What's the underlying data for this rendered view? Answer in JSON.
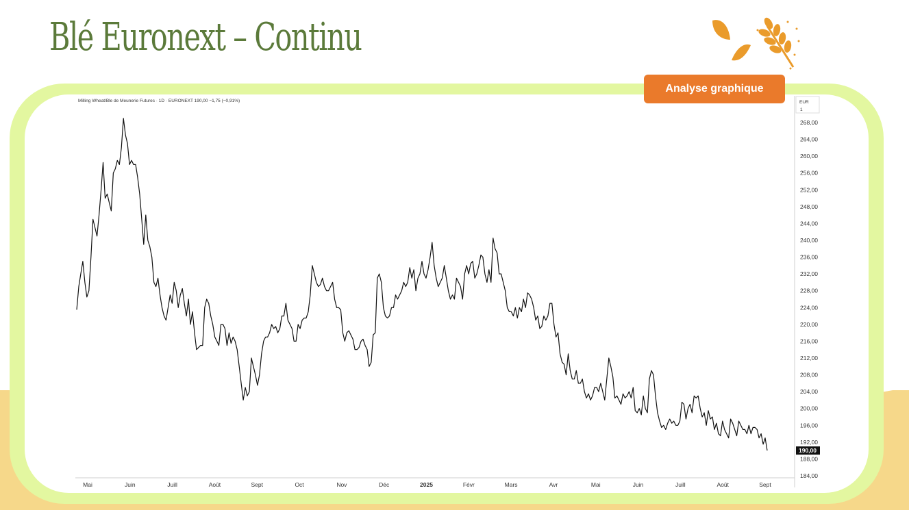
{
  "page": {
    "title": "Blé Euronext – Continu",
    "button_label": "Analyse graphique"
  },
  "colors": {
    "title": "#5b7a3a",
    "frame": "#e3f7a0",
    "accent": "#ea7a2b",
    "band": "#f6d88a",
    "line": "#111111"
  },
  "chart_data": {
    "type": "line",
    "header": "Milling Wheat/Ble de Meunerie Futures · 1D · EURONEXT  190,00  −1,75 (−0,91%)",
    "currency_label": "EUR",
    "currency_sub": "1",
    "y_ticks": [
      "268,00",
      "264,00",
      "260,00",
      "256,00",
      "252,00",
      "248,00",
      "244,00",
      "240,00",
      "236,00",
      "232,00",
      "228,00",
      "224,00",
      "220,00",
      "216,00",
      "212,00",
      "208,00",
      "204,00",
      "200,00",
      "196,00",
      "192,00",
      "188,00",
      "184,00"
    ],
    "y_tick_values": [
      268,
      264,
      260,
      256,
      252,
      248,
      244,
      240,
      236,
      232,
      228,
      224,
      220,
      216,
      212,
      208,
      204,
      200,
      196,
      192,
      188,
      184
    ],
    "ylim": [
      184,
      268
    ],
    "last_price_label": "190,00",
    "x_tick_labels": [
      "Mai",
      "Juin",
      "Juill",
      "Août",
      "Sept",
      "Oct",
      "Nov",
      "Déc",
      "2025",
      "Févr",
      "Mars",
      "Avr",
      "Mai",
      "Juin",
      "Juill",
      "Août",
      "Sept"
    ],
    "x_bold_label": "2025",
    "series": [
      {
        "values": [
          223.5,
          229.0,
          232.0,
          235.0,
          230.0,
          226.5,
          228.0,
          236.0,
          245.0,
          243.0,
          241.0,
          246.0,
          252.0,
          258.5,
          250.0,
          251.0,
          249.0,
          247.0,
          256.0,
          257.0,
          259.0,
          258.0,
          262.0,
          269.0,
          265.0,
          263.0,
          258.0,
          259.0,
          258.0,
          258.0,
          255.0,
          251.0,
          245.0,
          239.0,
          246.0,
          240.0,
          238.5,
          236.0,
          230.0,
          229.0,
          231.0,
          227.0,
          224.0,
          222.0,
          221.0,
          224.0,
          227.0,
          225.0,
          230.0,
          228.0,
          224.0,
          227.0,
          228.5,
          225.0,
          222.0,
          226.0,
          220.0,
          223.0,
          218.0,
          214.0,
          214.5,
          215.0,
          215.0,
          224.0,
          226.0,
          225.0,
          222.0,
          220.0,
          217.0,
          216.0,
          215.0,
          220.0,
          220.0,
          219.0,
          215.0,
          218.0,
          215.5,
          217.0,
          216.0,
          214.0,
          210.0,
          206.0,
          202.0,
          205.0,
          203.0,
          204.0,
          212.0,
          210.0,
          208.0,
          205.5,
          208.0,
          213.0,
          216.0,
          217.0,
          217.0,
          218.0,
          220.0,
          219.0,
          219.5,
          218.0,
          219.0,
          222.0,
          222.0,
          225.0,
          221.0,
          220.0,
          219.0,
          216.0,
          216.0,
          220.0,
          219.0,
          221.0,
          221.5,
          221.5,
          223.0,
          227.0,
          234.0,
          232.0,
          230.0,
          229.0,
          229.5,
          231.0,
          229.0,
          228.0,
          228.0,
          229.0,
          230.0,
          226.0,
          224.0,
          224.0,
          223.5,
          218.0,
          216.0,
          218.0,
          218.5,
          217.5,
          216.5,
          214.0,
          214.0,
          214.5,
          216.0,
          216.5,
          215.0,
          214.0,
          210.0,
          211.0,
          217.5,
          218.0,
          231.0,
          232.0,
          230.0,
          224.0,
          222.0,
          221.5,
          222.0,
          224.0,
          224.0,
          227.0,
          226.0,
          227.0,
          228.0,
          230.0,
          229.0,
          230.0,
          233.5,
          231.0,
          233.0,
          228.0,
          231.0,
          232.0,
          235.0,
          232.0,
          231.0,
          233.0,
          236.0,
          239.5,
          234.0,
          231.0,
          229.0,
          230.0,
          231.0,
          234.0,
          231.0,
          228.0,
          226.0,
          227.0,
          226.0,
          231.0,
          230.0,
          229.0,
          226.0,
          232.0,
          234.0,
          232.0,
          234.5,
          235.0,
          231.0,
          232.0,
          234.0,
          236.5,
          236.0,
          232.0,
          230.0,
          233.0,
          230.0,
          240.5,
          238.0,
          237.0,
          232.0,
          232.0,
          230.0,
          228.0,
          224.0,
          223.0,
          223.0,
          222.0,
          224.0,
          221.5,
          224.0,
          223.0,
          226.0,
          224.0,
          227.5,
          227.0,
          226.0,
          224.0,
          221.0,
          222.0,
          219.0,
          219.5,
          222.0,
          221.0,
          222.0,
          225.0,
          225.0,
          220.0,
          217.0,
          218.0,
          213.0,
          211.0,
          210.5,
          208.0,
          213.0,
          209.0,
          207.0,
          207.0,
          209.0,
          206.0,
          206.0,
          207.0,
          204.0,
          202.5,
          203.5,
          202.0,
          203.0,
          205.0,
          205.0,
          204.0,
          206.0,
          204.0,
          202.0,
          207.0,
          212.0,
          210.0,
          207.5,
          202.5,
          203.0,
          202.0,
          201.0,
          203.5,
          202.5,
          203.0,
          204.0,
          202.5,
          205.0,
          199.5,
          199.0,
          200.0,
          198.5,
          203.0,
          200.0,
          199.0,
          207.0,
          209.0,
          208.0,
          203.0,
          199.0,
          197.0,
          195.5,
          196.0,
          195.0,
          196.5,
          197.5,
          196.5,
          197.0,
          196.0,
          196.0,
          197.0,
          201.5,
          201.0,
          197.5,
          200.0,
          201.0,
          199.0,
          203.0,
          202.5,
          203.0,
          200.0,
          198.0,
          199.0,
          196.0,
          199.5,
          197.5,
          198.0,
          195.0,
          196.5,
          194.0,
          193.5,
          197.0,
          195.0,
          194.0,
          193.0,
          197.5,
          196.5,
          195.0,
          193.5,
          197.0,
          196.0,
          195.0,
          195.0,
          194.0,
          196.0,
          194.0,
          195.5,
          195.5,
          195.0,
          193.0,
          194.0,
          191.5,
          193.0,
          190.0
        ]
      }
    ]
  }
}
